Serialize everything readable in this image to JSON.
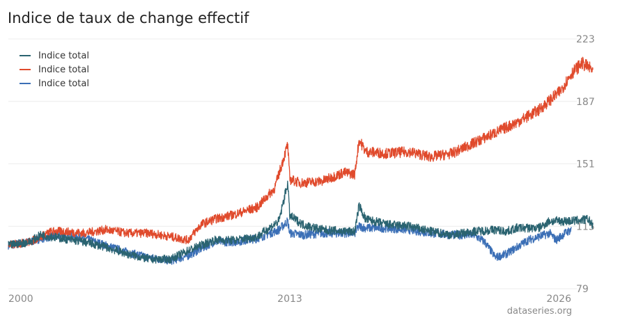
{
  "chart_data": {
    "type": "line",
    "title": "Indice de taux de change effectif",
    "xlabel": "",
    "ylabel": "",
    "xlim": [
      2000,
      2026
    ],
    "ylim": [
      79,
      223
    ],
    "y_ticks": [
      "223",
      "187",
      "151",
      "115",
      "79"
    ],
    "x_ticks": [
      "2000",
      "2013",
      "2026"
    ],
    "grid": true,
    "legend": "top-left",
    "source": "dataseries.org",
    "series": [
      {
        "name": "Indice total",
        "color": "#2a6370",
        "points": [
          [
            2000.0,
            104
          ],
          [
            2001.0,
            106
          ],
          [
            2001.5,
            110
          ],
          [
            2002.5,
            108
          ],
          [
            2003.5,
            106
          ],
          [
            2004.5,
            103
          ],
          [
            2005.5,
            99
          ],
          [
            2006.5,
            96
          ],
          [
            2007.5,
            96
          ],
          [
            2008.3,
            101
          ],
          [
            2008.9,
            104
          ],
          [
            2009.5,
            107
          ],
          [
            2010.5,
            107
          ],
          [
            2011.5,
            109
          ],
          [
            2012.5,
            118
          ],
          [
            2012.9,
            140
          ],
          [
            2013.0,
            121
          ],
          [
            2013.6,
            116
          ],
          [
            2014.5,
            113
          ],
          [
            2015.5,
            112
          ],
          [
            2016.0,
            112
          ],
          [
            2016.2,
            127
          ],
          [
            2016.5,
            119
          ],
          [
            2017.5,
            116
          ],
          [
            2018.5,
            115
          ],
          [
            2019.5,
            112
          ],
          [
            2020.5,
            110
          ],
          [
            2021.5,
            112
          ],
          [
            2022.5,
            113
          ],
          [
            2023.0,
            112
          ],
          [
            2023.5,
            114
          ],
          [
            2024.5,
            114
          ],
          [
            2025.0,
            118
          ],
          [
            2026.0,
            118
          ],
          [
            2026.8,
            119
          ],
          [
            2027.0,
            115
          ]
        ]
      },
      {
        "name": "Indice total",
        "color": "#e04a2c",
        "points": [
          [
            2000.0,
            104
          ],
          [
            2001.0,
            106
          ],
          [
            2002.0,
            112
          ],
          [
            2002.5,
            112
          ],
          [
            2003.5,
            111
          ],
          [
            2004.5,
            113
          ],
          [
            2005.5,
            111
          ],
          [
            2006.5,
            111
          ],
          [
            2007.5,
            109
          ],
          [
            2008.3,
            107
          ],
          [
            2008.9,
            116
          ],
          [
            2009.5,
            119
          ],
          [
            2010.5,
            122
          ],
          [
            2011.5,
            126
          ],
          [
            2012.3,
            137
          ],
          [
            2012.9,
            162
          ],
          [
            2013.0,
            142
          ],
          [
            2013.5,
            140
          ],
          [
            2014.5,
            141
          ],
          [
            2015.5,
            146
          ],
          [
            2016.0,
            145
          ],
          [
            2016.2,
            165
          ],
          [
            2016.5,
            158
          ],
          [
            2017.5,
            157
          ],
          [
            2018.5,
            158
          ],
          [
            2019.5,
            155
          ],
          [
            2020.5,
            157
          ],
          [
            2021.5,
            163
          ],
          [
            2022.5,
            169
          ],
          [
            2023.5,
            175
          ],
          [
            2024.5,
            182
          ],
          [
            2025.5,
            193
          ],
          [
            2026.0,
            203
          ],
          [
            2026.5,
            209
          ],
          [
            2027.0,
            205
          ]
        ]
      },
      {
        "name": "Indice total",
        "color": "#3b6fb6",
        "points": [
          [
            2000.0,
            104
          ],
          [
            2001.0,
            106
          ],
          [
            2001.5,
            108
          ],
          [
            2002.5,
            110
          ],
          [
            2003.5,
            108
          ],
          [
            2004.5,
            104
          ],
          [
            2005.5,
            100
          ],
          [
            2006.5,
            97
          ],
          [
            2007.5,
            95
          ],
          [
            2008.3,
            98
          ],
          [
            2008.9,
            102
          ],
          [
            2009.5,
            106
          ],
          [
            2010.5,
            106
          ],
          [
            2011.5,
            108
          ],
          [
            2012.5,
            113
          ],
          [
            2012.9,
            118
          ],
          [
            2013.0,
            111
          ],
          [
            2013.6,
            110
          ],
          [
            2014.5,
            111
          ],
          [
            2015.5,
            111
          ],
          [
            2016.0,
            111
          ],
          [
            2016.2,
            115
          ],
          [
            2016.5,
            114
          ],
          [
            2017.5,
            114
          ],
          [
            2018.5,
            113
          ],
          [
            2019.5,
            111
          ],
          [
            2020.5,
            110
          ],
          [
            2021.5,
            110
          ],
          [
            2022.0,
            106
          ],
          [
            2022.5,
            97
          ],
          [
            2023.0,
            99
          ],
          [
            2023.5,
            103
          ],
          [
            2024.0,
            107
          ],
          [
            2024.5,
            109
          ],
          [
            2025.0,
            111
          ],
          [
            2025.3,
            107
          ],
          [
            2025.7,
            111
          ],
          [
            2026.0,
            113
          ]
        ]
      }
    ]
  }
}
